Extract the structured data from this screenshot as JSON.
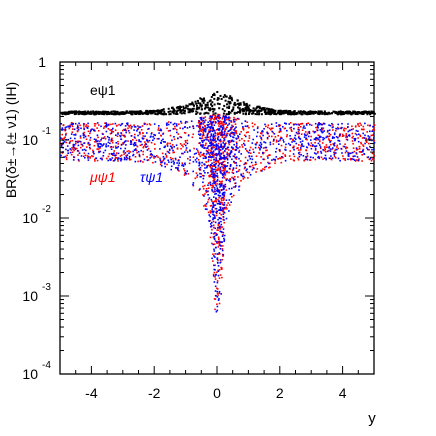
{
  "chart_data": {
    "type": "scatter",
    "title": "",
    "xlabel": "y",
    "ylabel": "BR(δ±→ℓ± ν1) (IH)",
    "xlim": [
      -5,
      5
    ],
    "ylim": [
      0.0001,
      1
    ],
    "yscale": "log",
    "x_ticks": [
      -4,
      -2,
      0,
      2,
      4
    ],
    "x_tick_labels": [
      "-4",
      "-2",
      "0",
      "2",
      "4"
    ],
    "y_ticks": [
      {
        "value": 1,
        "mantissa": "1",
        "exponent": ""
      },
      {
        "value": 0.1,
        "mantissa": "10",
        "exponent": "-1"
      },
      {
        "value": 0.01,
        "mantissa": "10",
        "exponent": "-2"
      },
      {
        "value": 0.001,
        "mantissa": "10",
        "exponent": "-3"
      },
      {
        "value": 0.0001,
        "mantissa": "10",
        "exponent": "-4"
      }
    ],
    "grid": false,
    "legend_placement": "inside-left",
    "series": [
      {
        "name": "eψ1",
        "color": "#000000",
        "shape": "band with peak at y = 0",
        "x": [
          -5,
          -4,
          -3,
          -2,
          -1,
          -0.5,
          0,
          0.5,
          1,
          2,
          3,
          4,
          5
        ],
        "y_low": [
          0.22,
          0.22,
          0.22,
          0.22,
          0.22,
          0.22,
          0.22,
          0.22,
          0.22,
          0.22,
          0.22,
          0.22,
          0.22
        ],
        "y_high": [
          0.24,
          0.24,
          0.24,
          0.245,
          0.29,
          0.37,
          0.43,
          0.37,
          0.29,
          0.245,
          0.24,
          0.24,
          0.24
        ]
      },
      {
        "name": "μψ1",
        "color": "#ff0000",
        "shape": "band with dip at y = 0",
        "x": [
          -5,
          -4,
          -3,
          -2,
          -1,
          -0.5,
          -0.25,
          0,
          0.25,
          0.5,
          1,
          2,
          3,
          4,
          5
        ],
        "y_low": [
          0.055,
          0.055,
          0.055,
          0.052,
          0.035,
          0.018,
          0.006,
          0.0002,
          0.006,
          0.018,
          0.035,
          0.052,
          0.055,
          0.055,
          0.055
        ],
        "y_high": [
          0.17,
          0.17,
          0.17,
          0.17,
          0.18,
          0.2,
          0.21,
          0.22,
          0.21,
          0.2,
          0.18,
          0.17,
          0.17,
          0.17,
          0.17
        ]
      },
      {
        "name": "τψ1",
        "color": "#0000ff",
        "shape": "band with dip at y = 0",
        "x": [
          -5,
          -4,
          -3,
          -2,
          -1,
          -0.5,
          -0.25,
          0,
          0.25,
          0.5,
          1,
          2,
          3,
          4,
          5
        ],
        "y_low": [
          0.055,
          0.055,
          0.055,
          0.052,
          0.035,
          0.018,
          0.006,
          0.0002,
          0.006,
          0.018,
          0.035,
          0.052,
          0.055,
          0.055,
          0.055
        ],
        "y_high": [
          0.17,
          0.17,
          0.17,
          0.17,
          0.18,
          0.2,
          0.21,
          0.22,
          0.21,
          0.2,
          0.18,
          0.17,
          0.17,
          0.17,
          0.17
        ]
      }
    ]
  }
}
